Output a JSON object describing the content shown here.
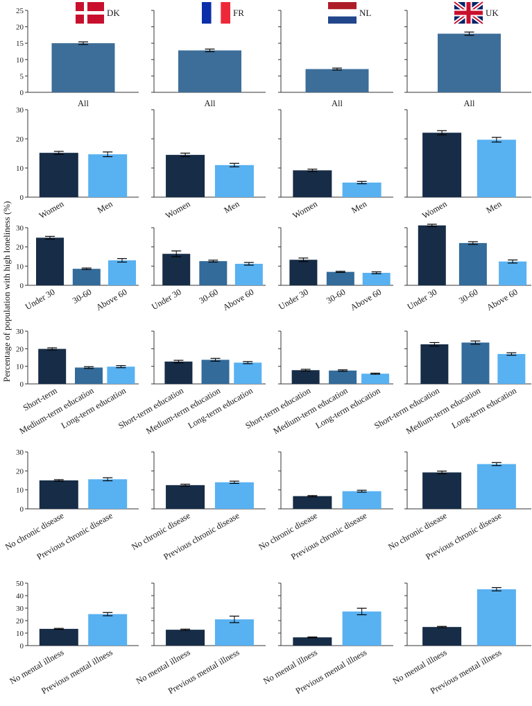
{
  "chart_data": [
    {
      "type": "bar",
      "ylabel": "Percentage of population with high loneliness (%)",
      "ylim": [
        0,
        25
      ],
      "yticks": [
        0,
        5,
        10,
        15,
        20,
        25
      ],
      "categories": [
        "All"
      ],
      "panels": [
        {
          "country": "DK",
          "values": [
            15.0
          ],
          "errors": [
            0.4
          ]
        },
        {
          "country": "FR",
          "values": [
            12.8
          ],
          "errors": [
            0.4
          ]
        },
        {
          "country": "NL",
          "values": [
            7.1
          ],
          "errors": [
            0.3
          ]
        },
        {
          "country": "UK",
          "values": [
            17.9
          ],
          "errors": [
            0.5
          ]
        }
      ]
    },
    {
      "type": "bar",
      "ylim": [
        0,
        30
      ],
      "yticks": [
        0,
        10,
        20,
        30
      ],
      "categories": [
        "Women",
        "Men"
      ],
      "panels": [
        {
          "country": "DK",
          "values": [
            15.2,
            14.7
          ],
          "errors": [
            0.5,
            0.8
          ]
        },
        {
          "country": "FR",
          "values": [
            14.5,
            11.0
          ],
          "errors": [
            0.6,
            0.6
          ]
        },
        {
          "country": "NL",
          "values": [
            9.2,
            5.0
          ],
          "errors": [
            0.4,
            0.4
          ]
        },
        {
          "country": "UK",
          "values": [
            22.1,
            19.7
          ],
          "errors": [
            0.7,
            0.8
          ]
        }
      ]
    },
    {
      "type": "bar",
      "ylim": [
        0,
        30
      ],
      "yticks": [
        0,
        10,
        20,
        30
      ],
      "categories": [
        "Under 30",
        "30-60",
        "Above 60"
      ],
      "panels": [
        {
          "country": "DK",
          "values": [
            24.8,
            8.6,
            13.0
          ],
          "errors": [
            0.7,
            0.4,
            0.9
          ]
        },
        {
          "country": "FR",
          "values": [
            16.4,
            12.6,
            11.2
          ],
          "errors": [
            1.5,
            0.5,
            0.7
          ]
        },
        {
          "country": "NL",
          "values": [
            13.3,
            7.0,
            6.5
          ],
          "errors": [
            0.9,
            0.3,
            0.5
          ]
        },
        {
          "country": "UK",
          "values": [
            31.2,
            22.0,
            12.4
          ],
          "errors": [
            0.6,
            0.7,
            0.8
          ]
        }
      ]
    },
    {
      "type": "bar",
      "ylim": [
        0,
        30
      ],
      "yticks": [
        0,
        10,
        20,
        30
      ],
      "categories": [
        "Short-term education",
        "Medium-term education",
        "Long-term education"
      ],
      "category_labels_per_panel": [
        [
          "Short-term",
          "Medium-term education",
          "Long-term education"
        ],
        [
          "Short-term education",
          "Medium-term education",
          "Long-term education"
        ],
        [
          "Short-term education",
          "Medium-term education",
          "Long-term education"
        ],
        [
          "Short-term education",
          "Medium-term education",
          "Long-term education"
        ]
      ],
      "panels": [
        {
          "country": "DK",
          "values": [
            19.9,
            9.3,
            9.8
          ],
          "errors": [
            0.6,
            0.5,
            0.6
          ]
        },
        {
          "country": "FR",
          "values": [
            12.7,
            13.7,
            12.1
          ],
          "errors": [
            0.7,
            0.8,
            0.6
          ]
        },
        {
          "country": "NL",
          "values": [
            7.8,
            7.6,
            5.8
          ],
          "errors": [
            0.5,
            0.4,
            0.3
          ]
        },
        {
          "country": "UK",
          "values": [
            22.5,
            23.5,
            17.0
          ],
          "errors": [
            1.0,
            0.9,
            0.7
          ]
        }
      ]
    },
    {
      "type": "bar",
      "ylim": [
        0,
        30
      ],
      "yticks": [
        0,
        10,
        20,
        30
      ],
      "categories": [
        "No chronic disease",
        "Previous chronic disease"
      ],
      "panels": [
        {
          "country": "DK",
          "values": [
            15.0,
            15.6
          ],
          "errors": [
            0.4,
            0.8
          ]
        },
        {
          "country": "FR",
          "values": [
            12.5,
            14.0
          ],
          "errors": [
            0.5,
            0.6
          ]
        },
        {
          "country": "NL",
          "values": [
            6.7,
            9.3
          ],
          "errors": [
            0.3,
            0.5
          ]
        },
        {
          "country": "UK",
          "values": [
            19.2,
            23.6
          ],
          "errors": [
            0.7,
            0.8
          ]
        }
      ]
    },
    {
      "type": "bar",
      "ylim": [
        0,
        50
      ],
      "yticks": [
        0,
        10,
        20,
        30,
        40,
        50
      ],
      "categories": [
        "No mental illness",
        "Previous mental illness"
      ],
      "panels": [
        {
          "country": "DK",
          "values": [
            13.4,
            25.2
          ],
          "errors": [
            0.4,
            1.3
          ]
        },
        {
          "country": "FR",
          "values": [
            12.7,
            21.0
          ],
          "errors": [
            0.5,
            2.6
          ]
        },
        {
          "country": "NL",
          "values": [
            6.6,
            27.3
          ],
          "errors": [
            0.3,
            2.6
          ]
        },
        {
          "country": "UK",
          "values": [
            14.9,
            45.1
          ],
          "errors": [
            0.5,
            1.3
          ]
        }
      ]
    }
  ],
  "countries": [
    "DK",
    "FR",
    "NL",
    "UK"
  ],
  "colors": {
    "dark": "#162c47",
    "mid": "#336b9a",
    "light": "#58b1f1",
    "all": "#3d6e99",
    "axis": "#333333",
    "dk_flag_red": "#c8102e",
    "fr_blue": "#0b2fa8",
    "fr_red": "#ed2939",
    "nl_red": "#ae1c28",
    "nl_blue": "#21468b",
    "uk_blue": "#012169",
    "uk_red": "#c8102e"
  }
}
